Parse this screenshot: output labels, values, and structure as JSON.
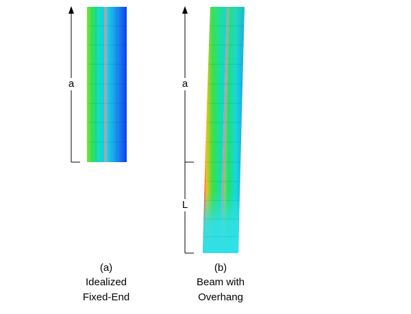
{
  "panel_a": {
    "dimension_label": "a",
    "caption": [
      "(a)",
      "Idealized",
      "Fixed-End"
    ]
  },
  "panel_b": {
    "dimension_labels": [
      "a",
      "L"
    ],
    "caption": [
      "(b)",
      "Beam with",
      "Overhang"
    ]
  }
}
